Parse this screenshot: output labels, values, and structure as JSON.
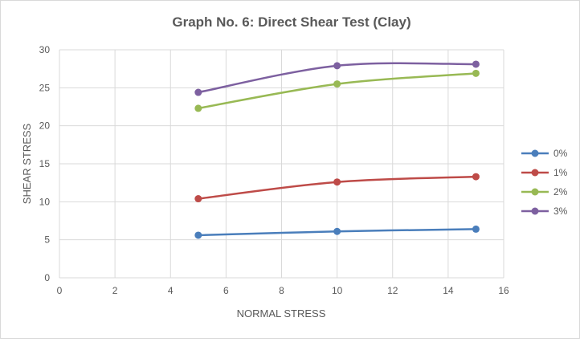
{
  "chart_data": {
    "type": "line",
    "title": "Graph No. 6: Direct Shear Test (Clay)",
    "xlabel": "NORMAL STRESS",
    "ylabel": "SHEAR STRESS",
    "xlim": [
      0,
      16
    ],
    "ylim": [
      0,
      30
    ],
    "xticks": [
      0,
      2,
      4,
      6,
      8,
      10,
      12,
      14,
      16
    ],
    "yticks": [
      0,
      5,
      10,
      15,
      20,
      25,
      30
    ],
    "grid": true,
    "smoothed": true,
    "legend_position": "right",
    "x": [
      5,
      10,
      15
    ],
    "series": [
      {
        "name": "0%",
        "color": "#4a7ebb",
        "values": [
          5.6,
          6.1,
          6.4
        ]
      },
      {
        "name": "1%",
        "color": "#be4b48",
        "values": [
          10.4,
          12.6,
          13.3
        ]
      },
      {
        "name": "2%",
        "color": "#98b954",
        "values": [
          22.3,
          25.5,
          26.9
        ]
      },
      {
        "name": "3%",
        "color": "#7d60a0",
        "values": [
          24.4,
          27.9,
          28.1
        ]
      }
    ]
  }
}
